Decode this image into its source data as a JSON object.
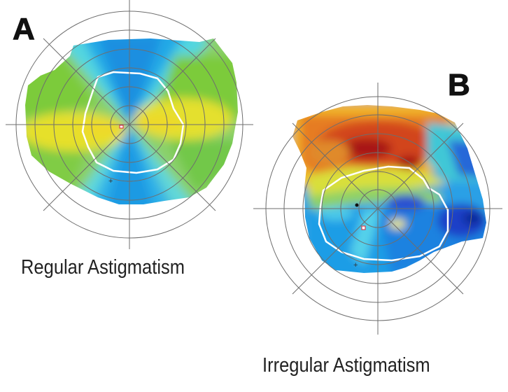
{
  "panels": [
    {
      "letter": "A",
      "caption": "Regular Astigmatism"
    },
    {
      "letter": "B",
      "caption": "Irregular Astigmatism"
    }
  ],
  "colors": {
    "background": "#ffffff",
    "grid": "#6e6e6e",
    "boundary": "#ffffff",
    "cool_blue": "#1aa6e6",
    "cyan": "#3fd2ea",
    "green": "#7cc83c",
    "yellow": "#e9e22a",
    "orange": "#e8892a",
    "red": "#c2211a",
    "dark_blue": "#1f3fd2"
  }
}
